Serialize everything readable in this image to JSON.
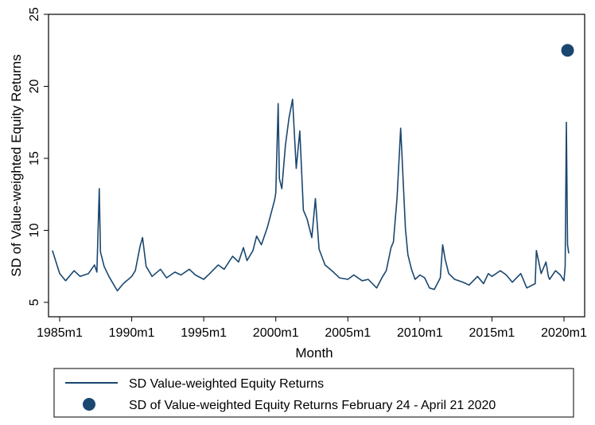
{
  "chart_data": {
    "type": "line",
    "xlabel": "Month",
    "ylabel": "SD of Value-weighted Equity Returns",
    "xlim": [
      "1984m1",
      "2021m1"
    ],
    "ylim": [
      4,
      25
    ],
    "x_ticks": [
      "1985m1",
      "1990m1",
      "1995m1",
      "2000m1",
      "2005m1",
      "2010m1",
      "2015m1",
      "2020m1"
    ],
    "y_ticks": [
      "5",
      "10",
      "15",
      "20",
      "25"
    ],
    "grid": false,
    "legend_position": "bottom",
    "series": [
      {
        "name": "SD Value-weighted Equity Returns",
        "kind": "line",
        "color": "#1a476f",
        "x": [
          "1984m7",
          "1985m1",
          "1985m6",
          "1986m1",
          "1986m6",
          "1987m1",
          "1987m6",
          "1987m8",
          "1987m10",
          "1987m11",
          "1988m2",
          "1988m6",
          "1989m1",
          "1989m6",
          "1990m1",
          "1990m4",
          "1990m8",
          "1990m10",
          "1991m1",
          "1991m6",
          "1992m1",
          "1992m6",
          "1993m1",
          "1993m6",
          "1994m1",
          "1994m6",
          "1995m1",
          "1995m6",
          "1996m1",
          "1996m6",
          "1997m1",
          "1997m6",
          "1997m10",
          "1998m1",
          "1998m6",
          "1998m9",
          "1999m1",
          "1999m6",
          "1999m12",
          "2000m1",
          "2000m3",
          "2000m4",
          "2000m6",
          "2000m9",
          "2000m12",
          "2001m3",
          "2001m6",
          "2001m9",
          "2001m12",
          "2002m3",
          "2002m7",
          "2002m10",
          "2003m1",
          "2003m6",
          "2004m1",
          "2004m6",
          "2005m1",
          "2005m6",
          "2006m1",
          "2006m6",
          "2007m1",
          "2007m6",
          "2007m9",
          "2008m1",
          "2008m3",
          "2008m6",
          "2008m9",
          "2008m10",
          "2008m11",
          "2009m1",
          "2009m3",
          "2009m6",
          "2009m9",
          "2010m1",
          "2010m5",
          "2010m9",
          "2011m1",
          "2011m6",
          "2011m8",
          "2011m10",
          "2012m1",
          "2012m6",
          "2013m1",
          "2013m6",
          "2014m1",
          "2014m6",
          "2014m10",
          "2015m1",
          "2015m8",
          "2016m1",
          "2016m6",
          "2017m1",
          "2017m6",
          "2018m1",
          "2018m2",
          "2018m6",
          "2018m10",
          "2018m12",
          "2019m1",
          "2019m6",
          "2019m10",
          "2020m1",
          "2020m2",
          "2020m3",
          "2020m4",
          "2020m5"
        ],
        "y": [
          8.6,
          7.0,
          6.5,
          7.2,
          6.8,
          7.0,
          7.6,
          7.1,
          12.9,
          8.5,
          7.5,
          6.8,
          5.8,
          6.3,
          6.8,
          7.2,
          8.9,
          9.5,
          7.5,
          6.8,
          7.3,
          6.7,
          7.1,
          6.9,
          7.3,
          6.9,
          6.6,
          7.0,
          7.6,
          7.3,
          8.2,
          7.8,
          8.8,
          7.9,
          8.6,
          9.6,
          9.0,
          10.2,
          12.1,
          12.6,
          18.8,
          13.6,
          12.9,
          15.9,
          17.8,
          19.1,
          14.3,
          16.9,
          11.4,
          10.8,
          9.5,
          12.2,
          8.7,
          7.6,
          7.1,
          6.7,
          6.6,
          6.9,
          6.5,
          6.6,
          6.0,
          6.8,
          7.2,
          8.8,
          9.2,
          12.3,
          17.1,
          15.4,
          13.6,
          10.1,
          8.3,
          7.3,
          6.6,
          6.9,
          6.7,
          6.0,
          5.9,
          6.7,
          9.0,
          8.0,
          7.0,
          6.6,
          6.4,
          6.2,
          6.8,
          6.3,
          7.0,
          6.8,
          7.2,
          6.9,
          6.4,
          7.0,
          6.0,
          6.3,
          8.6,
          7.0,
          7.8,
          6.8,
          6.6,
          7.2,
          6.9,
          6.5,
          7.5,
          17.5,
          9.0,
          8.4
        ]
      },
      {
        "name": "SD of Value-weighted Equity Returns February 24 - April 21 2020",
        "kind": "scatter",
        "color": "#1a476f",
        "x": [
          "2020m4"
        ],
        "y": [
          22.5
        ]
      }
    ]
  }
}
